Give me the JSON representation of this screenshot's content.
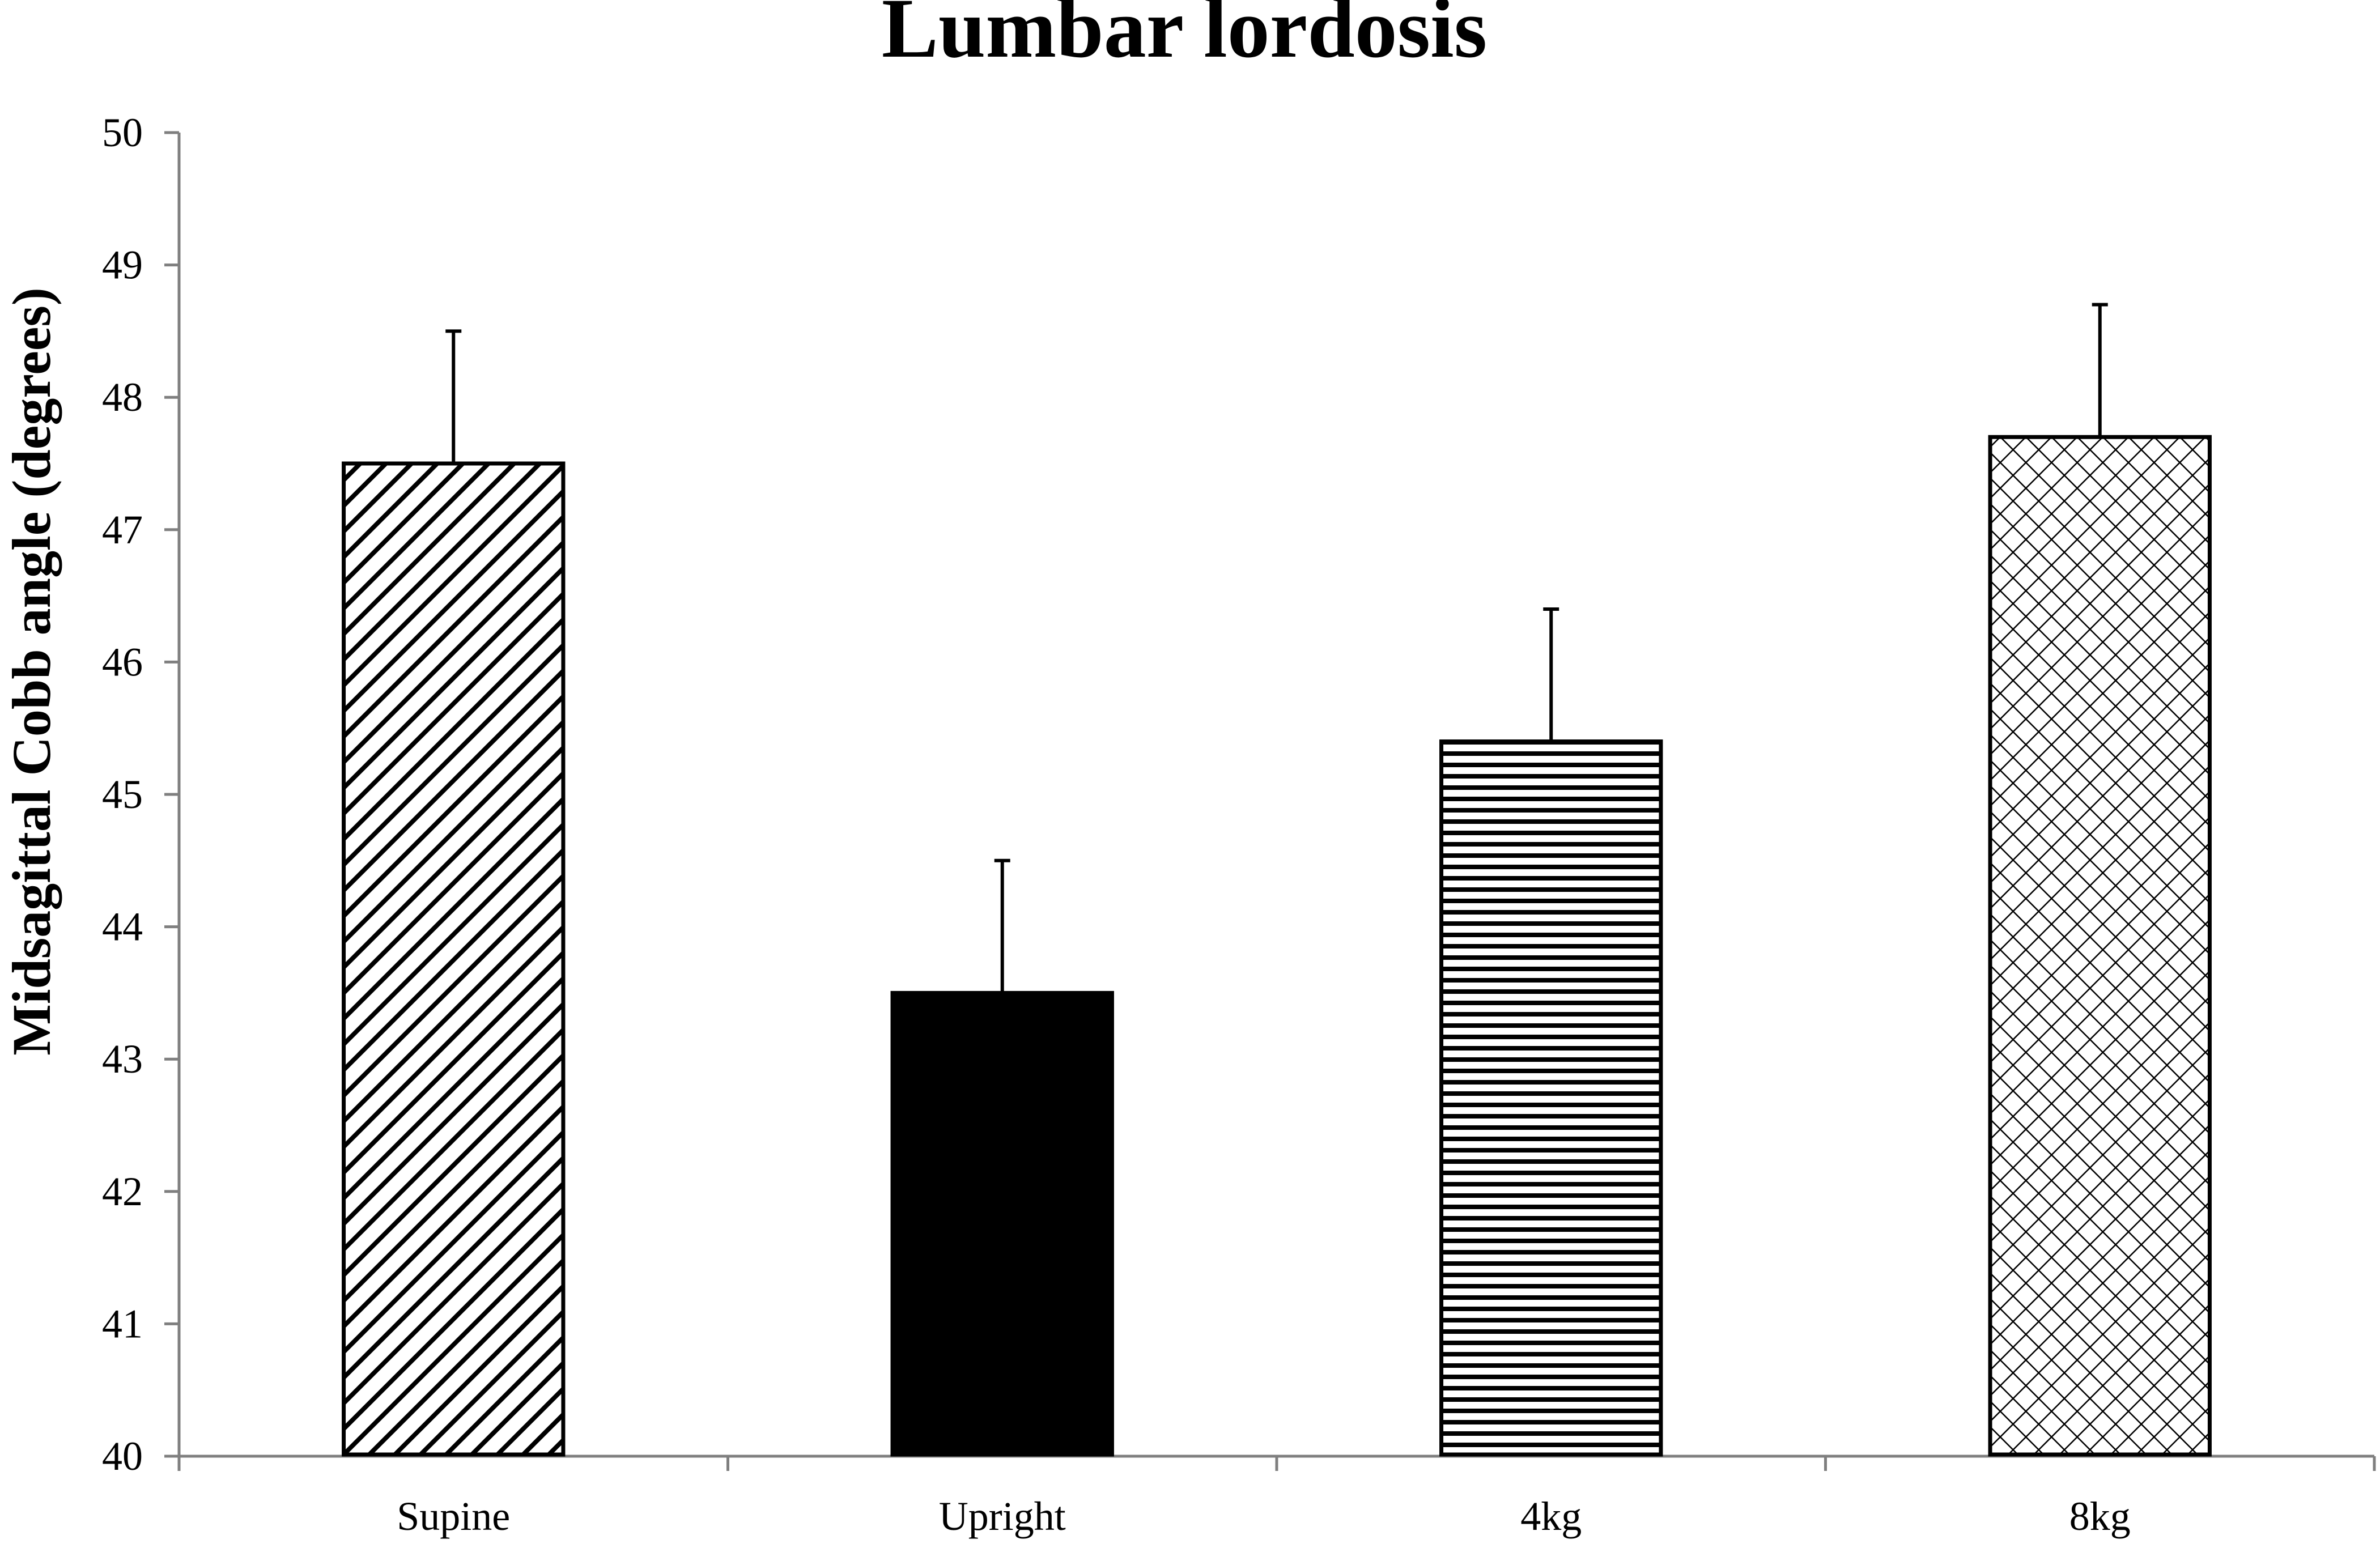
{
  "chart_data": {
    "type": "bar",
    "title": "Lumbar lordosis",
    "xlabel": "",
    "ylabel": "Midsagittal Cobb angle (degrees)",
    "ylim": [
      40,
      50
    ],
    "yticks": [
      "40",
      "41",
      "42",
      "43",
      "44",
      "45",
      "46",
      "47",
      "48",
      "49",
      "50"
    ],
    "categories": [
      "Supine",
      "Upright",
      "4kg",
      "8kg"
    ],
    "values": [
      47.5,
      43.5,
      45.4,
      47.7
    ],
    "errors": [
      1.0,
      1.0,
      1.0,
      1.0
    ],
    "fills": [
      "diagonal-hatch",
      "solid-black",
      "horizontal-lines",
      "crosshatch"
    ],
    "grid": false,
    "legend": "none"
  }
}
